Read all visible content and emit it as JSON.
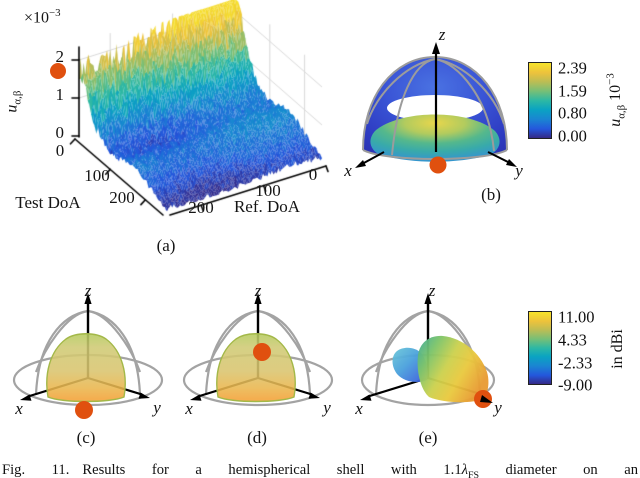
{
  "colors": {
    "marker": "#e0500f",
    "wireframe": "#a3a3a3",
    "colormap": [
      [
        0,
        "#352a87"
      ],
      [
        0.12,
        "#2457dc"
      ],
      [
        0.25,
        "#1a85d2"
      ],
      [
        0.38,
        "#0aa3c2"
      ],
      [
        0.5,
        "#2db8a4"
      ],
      [
        0.62,
        "#74bf78"
      ],
      [
        0.75,
        "#bcbd54"
      ],
      [
        0.87,
        "#edc23c"
      ],
      [
        1,
        "#f7e32a"
      ]
    ]
  },
  "panel_a": {
    "label": "(a)",
    "z_exponent": {
      "base": "×10",
      "exp": "−3"
    },
    "z_label": {
      "base": "u",
      "sub": "α,β"
    },
    "z_ticks": [
      "2",
      "1",
      "0"
    ],
    "test_axis": {
      "label": "Test DoA",
      "ticks": [
        "0",
        "100",
        "200"
      ]
    },
    "ref_axis": {
      "label": "Ref. DoA",
      "ticks": [
        "200",
        "100",
        "0"
      ]
    }
  },
  "panel_b": {
    "label": "(b)",
    "axis_x": "x",
    "axis_y": "y",
    "axis_z": "z",
    "colorbar": {
      "ticks": [
        "2.39",
        "1.59",
        "0.80",
        "0.00"
      ],
      "unit": {
        "base": "u",
        "sub": "α,β",
        "mult": "10",
        "exp": "−3"
      }
    }
  },
  "panel_c": {
    "label": "(c)",
    "axis_x": "x",
    "axis_y": "y",
    "axis_z": "z"
  },
  "panel_d": {
    "label": "(d)",
    "axis_x": "x",
    "axis_y": "y",
    "axis_z": "z"
  },
  "panel_e": {
    "label": "(e)",
    "axis_x": "x",
    "axis_y": "y",
    "axis_z": "z",
    "colorbar": {
      "ticks": [
        "11.00",
        "4.33",
        "-2.33",
        "-9.00"
      ],
      "unit": "in dBi"
    }
  },
  "caption": {
    "label": "Fig. 11.",
    "before_lambda": "Results for a hemispherical shell with 1.1",
    "lambda": "λ",
    "lambda_sub": "FS",
    "after_lambda": " diameter on an"
  },
  "chart_data": [
    {
      "panel": "a",
      "type": "surface",
      "xlabel": "Ref. DoA",
      "ylabel": "Test DoA",
      "zlabel": "u_α,β ×10⁻³",
      "x_range": [
        0,
        250
      ],
      "y_range": [
        0,
        250
      ],
      "z_range": [
        0,
        0.0024
      ],
      "z_ticks": [
        0,
        0.001,
        0.002
      ],
      "x_ticks": [
        200,
        100,
        0
      ],
      "y_ticks": [
        0,
        100,
        200
      ],
      "description": "Noisy correlation-cost surface: tall jagged ridge along Test DoA = 0 rising from about 1.6e-3 at Ref DoA = 250 to a peak of about 2.39e-3 near Ref DoA = 0; rest of the surface is low (below 0.5e-3, blue) with small rolling hills toward the front.",
      "marker": {
        "test_doa": 0,
        "ref_doa": 250,
        "value": 0.0016,
        "color": "#e0500f"
      }
    },
    {
      "panel": "b",
      "type": "surface-3d",
      "description": "Hemispherical shell colored by u_α,β: outer surface blue (low values), inner surface green to yellow with maximum at top center; gray meridian wireframe, x/y/z axes, orange DoA marker at front base.",
      "colorbar": {
        "label": "u_α,β 10⁻³",
        "ticks": [
          2.39,
          1.59,
          0.8,
          0.0
        ],
        "range": [
          0,
          0.00239
        ]
      }
    },
    {
      "panel": "c",
      "type": "3d-pattern",
      "description": "Broad yellow-orange element pattern blob inside wireframe hemisphere; orange DoA marker on the equator at the front (horizon direction)."
    },
    {
      "panel": "d",
      "type": "3d-pattern",
      "description": "Same broad yellow-orange pattern blob; orange DoA marker near zenith on top of the blob."
    },
    {
      "panel": "e",
      "type": "3d-pattern",
      "description": "Directive beam pattern: large yellow-orange main lobe pointing toward +y with orange DoA marker on the y-axis, small blue-cyan back lobe on the opposite side.",
      "colorbar": {
        "label": "in dBi",
        "ticks": [
          11.0,
          4.33,
          -2.33,
          -9.0
        ],
        "range": [
          -9,
          11
        ]
      }
    }
  ]
}
